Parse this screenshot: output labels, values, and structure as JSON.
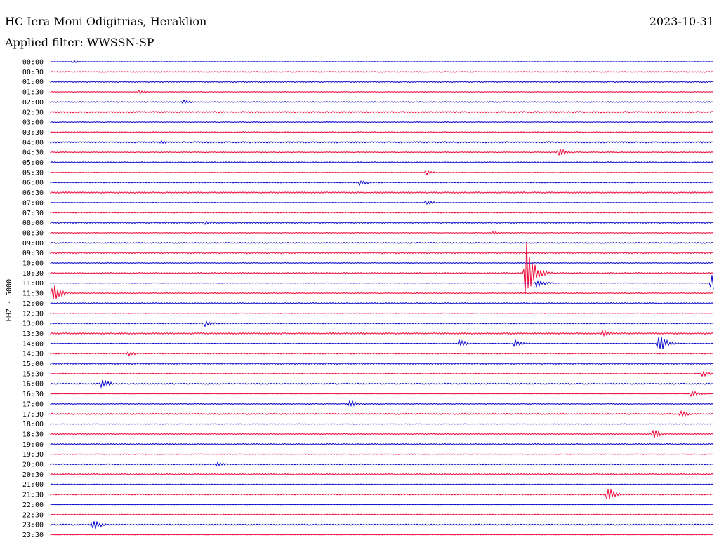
{
  "header": {
    "station": "HC Iera Moni Odigitrias, Heraklion",
    "date": "2023-10-31",
    "filter": "Applied filter: WWSSN-SP"
  },
  "colors": {
    "even_trace": "#0000cc",
    "odd_trace": "#ee0033"
  },
  "chart_data": {
    "type": "line",
    "title": "HC Iera Moni Odigitrias, Heraklion",
    "ylabel": "HHZ - 5000",
    "xlabel": "",
    "row_labels": [
      "00:00",
      "00:30",
      "01:00",
      "01:30",
      "02:00",
      "02:30",
      "03:00",
      "03:30",
      "04:00",
      "04:30",
      "05:00",
      "05:30",
      "06:00",
      "06:30",
      "07:00",
      "07:30",
      "08:00",
      "08:30",
      "09:00",
      "09:30",
      "10:00",
      "10:30",
      "11:00",
      "11:30",
      "12:00",
      "12:30",
      "13:00",
      "13:30",
      "14:00",
      "14:30",
      "15:00",
      "15:30",
      "16:00",
      "16:30",
      "17:00",
      "17:30",
      "18:00",
      "18:30",
      "19:00",
      "19:30",
      "20:00",
      "20:30",
      "21:00",
      "21:30",
      "22:00",
      "22:30",
      "23:00",
      "23:30"
    ],
    "row_minutes": 30,
    "bursts": [
      {
        "row": 0,
        "minute": 1,
        "amplitude": 2
      },
      {
        "row": 3,
        "minute": 4,
        "amplitude": 3
      },
      {
        "row": 4,
        "minute": 6,
        "amplitude": 4
      },
      {
        "row": 8,
        "minute": 5,
        "amplitude": 4
      },
      {
        "row": 9,
        "minute": 23,
        "amplitude": 7
      },
      {
        "row": 11,
        "minute": 17,
        "amplitude": 4
      },
      {
        "row": 12,
        "minute": 14,
        "amplitude": 5
      },
      {
        "row": 14,
        "minute": 17,
        "amplitude": 4
      },
      {
        "row": 16,
        "minute": 7,
        "amplitude": 4
      },
      {
        "row": 17,
        "minute": 20,
        "amplitude": 3
      },
      {
        "row": 21,
        "minute": 21.5,
        "amplitude": 52
      },
      {
        "row": 22,
        "minute": 22,
        "amplitude": 7
      },
      {
        "row": 22,
        "minute": 29.9,
        "amplitude": 13
      },
      {
        "row": 23,
        "minute": 0.1,
        "amplitude": 15
      },
      {
        "row": 26,
        "minute": 7,
        "amplitude": 5
      },
      {
        "row": 27,
        "minute": 25,
        "amplitude": 6
      },
      {
        "row": 28,
        "minute": 27.5,
        "amplitude": 17
      },
      {
        "row": 28,
        "minute": 18.5,
        "amplitude": 6
      },
      {
        "row": 28,
        "minute": 21,
        "amplitude": 6
      },
      {
        "row": 29,
        "minute": 3.5,
        "amplitude": 4
      },
      {
        "row": 31,
        "minute": 29.5,
        "amplitude": 5
      },
      {
        "row": 32,
        "minute": 2.3,
        "amplitude": 8
      },
      {
        "row": 33,
        "minute": 29,
        "amplitude": 6
      },
      {
        "row": 34,
        "minute": 13.5,
        "amplitude": 8
      },
      {
        "row": 35,
        "minute": 28.5,
        "amplitude": 7
      },
      {
        "row": 37,
        "minute": 27.3,
        "amplitude": 8
      },
      {
        "row": 40,
        "minute": 7.5,
        "amplitude": 4
      },
      {
        "row": 43,
        "minute": 25.2,
        "amplitude": 12
      },
      {
        "row": 46,
        "minute": 1.9,
        "amplitude": 10
      }
    ]
  }
}
